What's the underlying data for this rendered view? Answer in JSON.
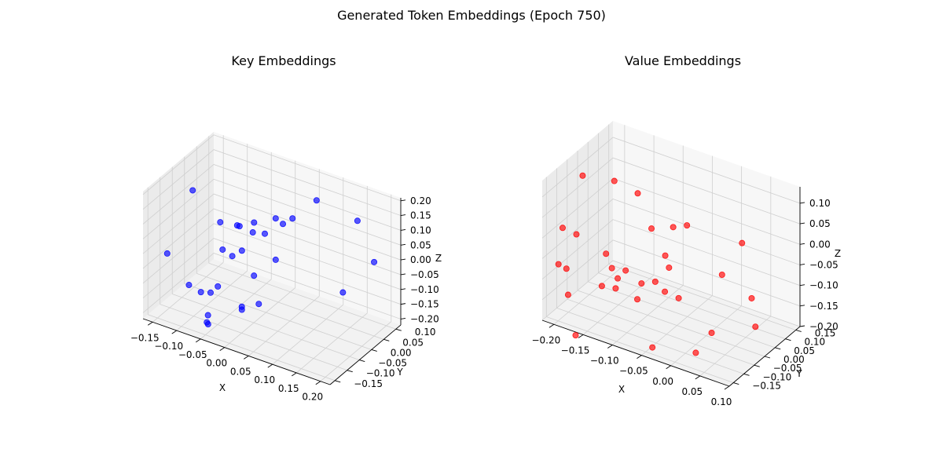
{
  "figure": {
    "title": "Generated Token Embeddings (Epoch 750)"
  },
  "chart_data": [
    {
      "type": "scatter",
      "projection": "3d",
      "title": "Key Embeddings",
      "xlabel": "X",
      "ylabel": "Y",
      "zlabel": "Z",
      "xlim": [
        -0.17,
        0.22
      ],
      "ylim": [
        -0.17,
        0.12
      ],
      "zlim": [
        -0.22,
        0.21
      ],
      "xticks": [
        "−0.15",
        "−0.10",
        "−0.05",
        "0.00",
        "0.05",
        "0.10",
        "0.15",
        "0.20"
      ],
      "yticks": [
        "−0.15",
        "−0.10",
        "−0.05",
        "0.00",
        "0.05",
        "0.10"
      ],
      "zticks": [
        "−0.20",
        "−0.15",
        "−0.10",
        "−0.05",
        "0.00",
        "0.05",
        "0.10",
        "0.15",
        "0.20"
      ],
      "grid": true,
      "color": "#0000ff",
      "points": [
        {
          "x": -0.13,
          "y": -0.045,
          "z": 0.15
        },
        {
          "x": -0.145,
          "y": -0.12,
          "z": -0.02
        },
        {
          "x": -0.07,
          "y": -0.05,
          "z": 0.08
        },
        {
          "x": -0.045,
          "y": -0.02,
          "z": 0.06
        },
        {
          "x": -0.055,
          "y": -0.01,
          "z": 0.05
        },
        {
          "x": -0.025,
          "y": -0.005,
          "z": 0.04
        },
        {
          "x": -0.03,
          "y": 0.01,
          "z": 0.06
        },
        {
          "x": -0.005,
          "y": 0.005,
          "z": 0.04
        },
        {
          "x": 0.01,
          "y": 0.02,
          "z": 0.09
        },
        {
          "x": 0.02,
          "y": 0.03,
          "z": 0.07
        },
        {
          "x": -0.06,
          "y": -0.06,
          "z": 0.0
        },
        {
          "x": -0.035,
          "y": -0.03,
          "z": -0.01
        },
        {
          "x": -0.05,
          "y": -0.04,
          "z": -0.03
        },
        {
          "x": -0.12,
          "y": -0.08,
          "z": -0.14
        },
        {
          "x": -0.075,
          "y": -0.05,
          "z": -0.14
        },
        {
          "x": -0.08,
          "y": -0.07,
          "z": -0.15
        },
        {
          "x": -0.09,
          "y": -0.09,
          "z": -0.14
        },
        {
          "x": -0.02,
          "y": -0.01,
          "z": -0.1
        },
        {
          "x": 0.01,
          "y": 0.02,
          "z": -0.05
        },
        {
          "x": -0.01,
          "y": -0.01,
          "z": -0.19
        },
        {
          "x": -0.03,
          "y": -0.04,
          "z": -0.2
        },
        {
          "x": -0.025,
          "y": -0.05,
          "z": -0.18
        },
        {
          "x": -0.06,
          "y": -0.12,
          "z": -0.18
        },
        {
          "x": -0.075,
          "y": -0.09,
          "z": -0.24
        },
        {
          "x": -0.075,
          "y": -0.095,
          "z": -0.23
        },
        {
          "x": 0.08,
          "y": 0.05,
          "z": 0.17
        },
        {
          "x": 0.15,
          "y": 0.08,
          "z": 0.12
        },
        {
          "x": 0.2,
          "y": 0.05,
          "z": 0.03
        },
        {
          "x": 0.14,
          "y": 0.04,
          "z": -0.1
        },
        {
          "x": 0.04,
          "y": 0.03,
          "z": 0.1
        }
      ]
    },
    {
      "type": "scatter",
      "projection": "3d",
      "title": "Value Embeddings",
      "xlabel": "X",
      "ylabel": "Y",
      "zlabel": "Z",
      "xlim": [
        -0.22,
        0.1
      ],
      "ylim": [
        -0.17,
        0.17
      ],
      "zlim": [
        -0.2,
        0.14
      ],
      "xticks": [
        "−0.20",
        "−0.15",
        "−0.10",
        "−0.05",
        "0.00",
        "0.05",
        "0.10"
      ],
      "yticks": [
        "−0.15",
        "−0.10",
        "−0.05",
        "0.00",
        "0.05",
        "0.10",
        "0.15"
      ],
      "zticks": [
        "−0.20",
        "−0.15",
        "−0.10",
        "−0.05",
        "0.00",
        "0.05",
        "0.10"
      ],
      "grid": true,
      "color": "#ff0000",
      "points": [
        {
          "x": -0.19,
          "y": -0.06,
          "z": 0.12
        },
        {
          "x": -0.15,
          "y": -0.02,
          "z": 0.11
        },
        {
          "x": -0.11,
          "y": -0.02,
          "z": 0.1
        },
        {
          "x": -0.21,
          "y": -0.1,
          "z": 0.0
        },
        {
          "x": -0.19,
          "y": -0.09,
          "z": -0.01
        },
        {
          "x": -0.21,
          "y": -0.12,
          "z": -0.08
        },
        {
          "x": -0.2,
          "y": -0.11,
          "z": -0.09
        },
        {
          "x": -0.19,
          "y": -0.13,
          "z": -0.14
        },
        {
          "x": -0.15,
          "y": -0.06,
          "z": -0.05
        },
        {
          "x": -0.14,
          "y": -0.06,
          "z": -0.08
        },
        {
          "x": -0.13,
          "y": -0.06,
          "z": -0.1
        },
        {
          "x": -0.15,
          "y": -0.08,
          "z": -0.12
        },
        {
          "x": -0.13,
          "y": -0.07,
          "z": -0.12
        },
        {
          "x": -0.12,
          "y": -0.05,
          "z": -0.08
        },
        {
          "x": -0.1,
          "y": -0.03,
          "z": -0.11
        },
        {
          "x": -0.1,
          "y": -0.05,
          "z": -0.14
        },
        {
          "x": -0.09,
          "y": -0.01,
          "z": 0.02
        },
        {
          "x": -0.06,
          "y": 0.01,
          "z": 0.03
        },
        {
          "x": -0.04,
          "y": 0.02,
          "z": 0.04
        },
        {
          "x": -0.07,
          "y": 0.0,
          "z": -0.04
        },
        {
          "x": -0.06,
          "y": -0.01,
          "z": -0.06
        },
        {
          "x": -0.08,
          "y": -0.02,
          "z": -0.1
        },
        {
          "x": -0.06,
          "y": -0.03,
          "z": -0.11
        },
        {
          "x": -0.04,
          "y": -0.02,
          "z": -0.12
        },
        {
          "x": 0.04,
          "y": 0.06,
          "z": 0.02
        },
        {
          "x": 0.02,
          "y": 0.02,
          "z": -0.05
        },
        {
          "x": 0.06,
          "y": 0.05,
          "z": -0.1
        },
        {
          "x": 0.07,
          "y": 0.04,
          "z": -0.16
        },
        {
          "x": -0.06,
          "y": -0.09,
          "z": -0.22
        },
        {
          "x": 0.0,
          "y": -0.05,
          "z": -0.22
        },
        {
          "x": -0.17,
          "y": -0.15,
          "z": -0.22
        },
        {
          "x": 0.02,
          "y": -0.03,
          "z": -0.17
        }
      ]
    }
  ]
}
